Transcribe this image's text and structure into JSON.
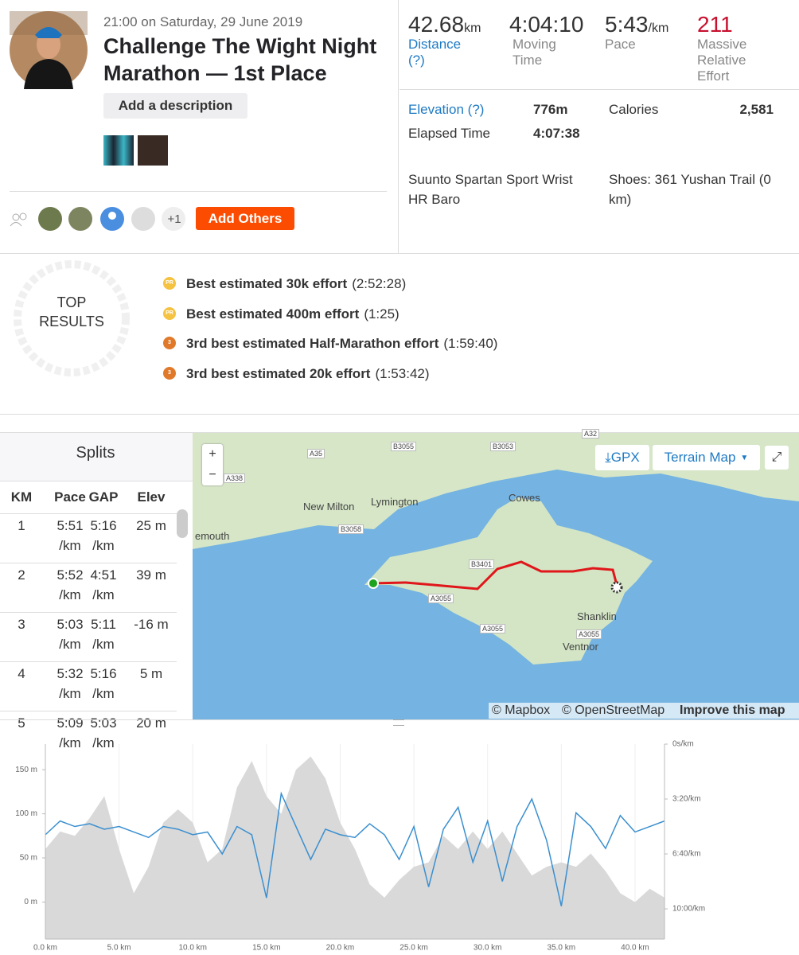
{
  "activity": {
    "date_time": "21:00 on Saturday, 29 June 2019",
    "title": "Challenge The Wight Night Marathon — 1st Place",
    "add_description": "Add a description",
    "plus_count": "+1",
    "add_others": "Add Others"
  },
  "stats": [
    {
      "value": "42.68",
      "unit": "km",
      "label": "Distance",
      "help": "(?)"
    },
    {
      "value": "4:04:10",
      "label": "Moving Time"
    },
    {
      "value": "5:43",
      "unit": "/km",
      "label": "Pace"
    },
    {
      "value": "211",
      "label": "Massive Relative Effort"
    }
  ],
  "details": {
    "elevation_label": "Elevation (?)",
    "elevation": "776m",
    "calories_label": "Calories",
    "calories": "2,581",
    "elapsed_label": "Elapsed Time",
    "elapsed": "4:07:38",
    "device": "Suunto Spartan Sport Wrist HR Baro",
    "shoes": "Shoes: 361 Yushan Trail (0 km)"
  },
  "top_results": {
    "title": "TOP RESULTS",
    "items": [
      {
        "badge": "PR",
        "effort": "Best estimated 30k effort",
        "time": "(2:52:28)"
      },
      {
        "badge": "PR",
        "effort": "Best estimated 400m effort",
        "time": "(1:25)"
      },
      {
        "badge": "3",
        "effort": "3rd best estimated Half-Marathon effort",
        "time": "(1:59:40)"
      },
      {
        "badge": "3",
        "effort": "3rd best estimated 20k effort",
        "time": "(1:53:42)"
      }
    ]
  },
  "splits": {
    "title": "Splits",
    "columns": [
      "KM",
      "Pace",
      "GAP",
      "Elev"
    ],
    "rows": [
      [
        "1",
        "5:51 /km",
        "5:16 /km",
        "25 m"
      ],
      [
        "2",
        "5:52 /km",
        "4:51 /km",
        "39 m"
      ],
      [
        "3",
        "5:03 /km",
        "5:11 /km",
        "-16 m"
      ],
      [
        "4",
        "5:32 /km",
        "5:16 /km",
        "5 m"
      ],
      [
        "5",
        "5:09 /km",
        "5:03 /km",
        "20 m"
      ]
    ]
  },
  "map": {
    "zoom_in": "+",
    "zoom_out": "−",
    "gpx": "GPX",
    "map_style": "Terrain Map",
    "labels": [
      "A35",
      "B3055",
      "B3053",
      "A32",
      "A338",
      "New Milton",
      "Lymington",
      "Cowes",
      "B3058",
      "emouth",
      "B3401",
      "A3055",
      "A3055",
      "Shanklin",
      "A3055",
      "Ventnor"
    ],
    "attribution": [
      "© Mapbox",
      "© OpenStreetMap",
      "Improve this map"
    ]
  },
  "chart_data": {
    "type": "line",
    "grid": true,
    "x": [
      0,
      1,
      2,
      3,
      4,
      5,
      6,
      7,
      8,
      9,
      10,
      11,
      12,
      13,
      14,
      15,
      16,
      17,
      18,
      19,
      20,
      21,
      22,
      23,
      24,
      25,
      26,
      27,
      28,
      29,
      30,
      31,
      32,
      33,
      34,
      35,
      36,
      37,
      38,
      39,
      40,
      41,
      42
    ],
    "series": [
      {
        "type": "area",
        "color": "#d9d9d9",
        "values": [
          60,
          80,
          75,
          95,
          120,
          60,
          10,
          40,
          90,
          105,
          90,
          45,
          60,
          130,
          160,
          120,
          100,
          150,
          165,
          140,
          90,
          60,
          20,
          5,
          25,
          40,
          45,
          75,
          60,
          80,
          60,
          80,
          55,
          30,
          40,
          45,
          40,
          55,
          35,
          10,
          0,
          15,
          5
        ]
      },
      {
        "type": "line",
        "axis": "y2",
        "color": "#3a8fd0",
        "values": [
          330,
          280,
          300,
          290,
          310,
          300,
          320,
          340,
          300,
          310,
          330,
          320,
          400,
          300,
          330,
          560,
          180,
          300,
          420,
          310,
          330,
          340,
          290,
          330,
          420,
          300,
          520,
          310,
          230,
          430,
          280,
          500,
          300,
          200,
          350,
          590,
          250,
          300,
          380,
          260,
          320,
          300,
          280
        ]
      }
    ],
    "xlim": [
      0,
      42
    ],
    "xticks": [
      {
        "value": 0,
        "label": "0.0 km"
      },
      {
        "value": 5,
        "label": "5.0 km"
      },
      {
        "value": 10,
        "label": "10.0 km"
      },
      {
        "value": 15,
        "label": "15.0 km"
      },
      {
        "value": 20,
        "label": "20.0 km"
      },
      {
        "value": 25,
        "label": "25.0 km"
      },
      {
        "value": 30,
        "label": "30.0 km"
      },
      {
        "value": 35,
        "label": "35.0 km"
      },
      {
        "value": 40,
        "label": "40.0 km"
      }
    ],
    "ylim": [
      -42,
      179
    ],
    "yticks": [
      {
        "value": 0,
        "label": "0 m"
      },
      {
        "value": 50,
        "label": "50 m"
      },
      {
        "value": 100,
        "label": "100 m"
      },
      {
        "value": 150,
        "label": "150 m"
      }
    ],
    "y2lim": [
      710,
      0
    ],
    "y2ticks": [
      {
        "value": 0,
        "label": "0s/km"
      },
      {
        "value": 200,
        "label": "3:20/km"
      },
      {
        "value": 400,
        "label": "6:40/km"
      },
      {
        "value": 600,
        "label": "10:00/km"
      }
    ]
  }
}
